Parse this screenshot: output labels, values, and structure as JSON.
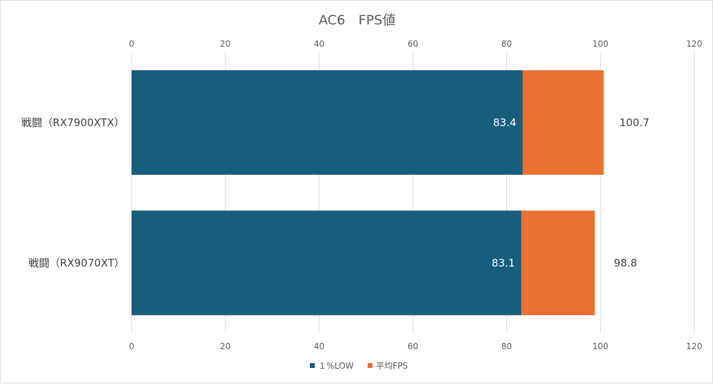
{
  "chart_data": {
    "type": "bar",
    "orientation": "horizontal",
    "stacked": false,
    "title": "AC6　FPS値",
    "categories": [
      "戦闘（RX7900XTX）",
      "戦闘（RX9070XT）"
    ],
    "series": [
      {
        "name": "１%LOW",
        "values": [
          83.4,
          83.1
        ],
        "color": "#175e7e"
      },
      {
        "name": "平均FPS",
        "values": [
          100.7,
          98.8
        ],
        "color": "#e97132"
      }
    ],
    "xlim": [
      0,
      120
    ],
    "xticks": [
      0,
      20,
      40,
      60,
      80,
      100,
      120
    ],
    "x_axis_position": "top",
    "grid": true,
    "legend_position": "bottom"
  }
}
